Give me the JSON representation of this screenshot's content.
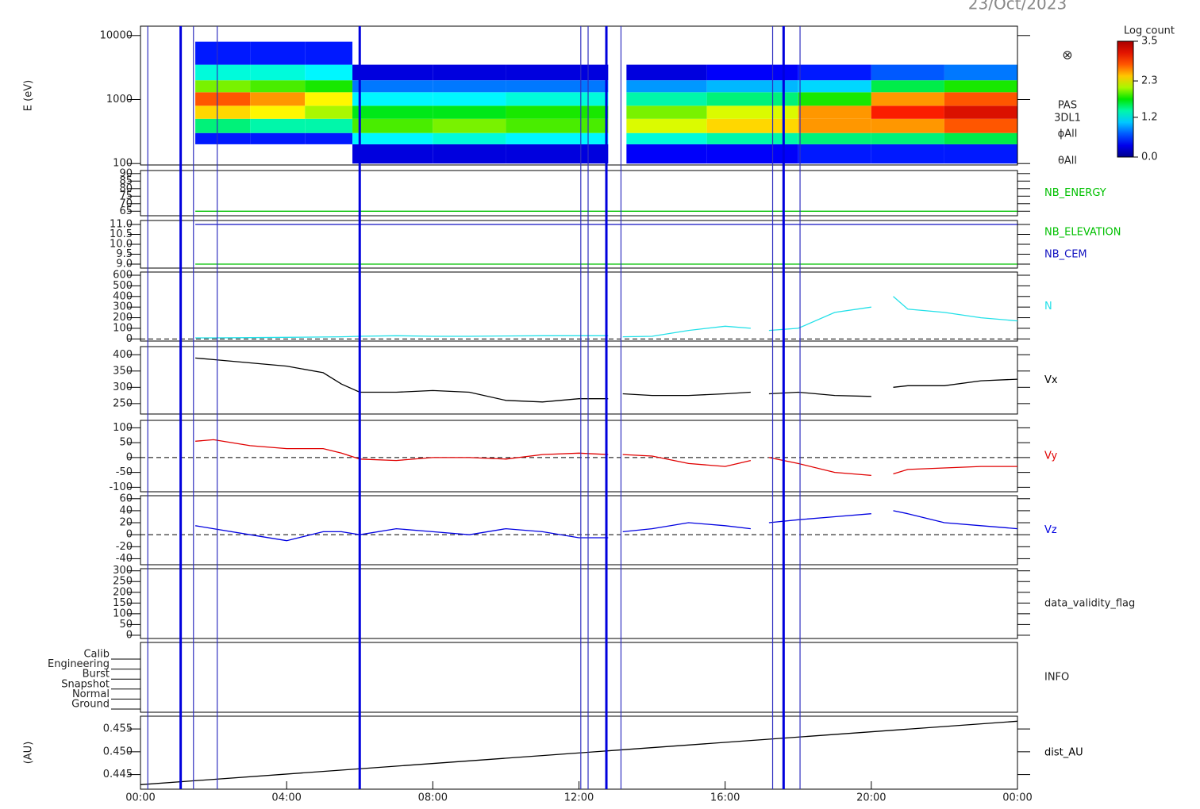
{
  "date": "23/Oct/2023",
  "time_axis": {
    "xlim": [
      0,
      24
    ],
    "xticks": [
      {
        "value": 0,
        "label": "00:00"
      },
      {
        "value": 4,
        "label": "04:00"
      },
      {
        "value": 8,
        "label": "08:00"
      },
      {
        "value": 12,
        "label": "12:00"
      },
      {
        "value": 16,
        "label": "16:00"
      },
      {
        "value": 20,
        "label": "20:00"
      },
      {
        "value": 24,
        "label": "00:00"
      }
    ]
  },
  "events": [
    0.2,
    1.1,
    1.45,
    2.1,
    6.0,
    12.05,
    12.25,
    12.75,
    13.15,
    17.3,
    17.6,
    18.05
  ],
  "chart_data": [
    {
      "type": "heatmap",
      "ylabel": "E (eV)",
      "log_scale": true,
      "ylim": [
        95,
        14000
      ],
      "yticks": [
        100,
        1000,
        10000
      ],
      "side_labels": [
        "PAS",
        "3DL1",
        "ϕAll",
        "θAll"
      ],
      "symbol": "⊗",
      "x_bins": [
        1.5,
        3,
        4.5,
        5.8,
        8,
        10,
        12.8,
        13.3,
        15.5,
        18,
        20,
        22,
        24
      ],
      "y_bins": [
        100,
        200,
        300,
        500,
        800,
        1300,
        2000,
        3500,
        8000
      ],
      "values": [
        [
          null,
          0.5,
          1.5,
          2.4,
          2.8,
          2.0,
          1.3,
          0.5
        ],
        [
          null,
          0.5,
          1.4,
          2.3,
          2.6,
          1.9,
          1.3,
          0.5
        ],
        [
          null,
          0.5,
          1.4,
          2.1,
          2.3,
          1.8,
          1.2,
          0.5
        ],
        [
          0.3,
          1.2,
          1.9,
          1.7,
          1.2,
          0.8,
          0.3,
          null
        ],
        [
          0.3,
          1.3,
          2.0,
          1.7,
          1.2,
          0.8,
          0.3,
          null
        ],
        [
          0.3,
          1.2,
          1.9,
          1.8,
          1.3,
          0.8,
          0.3,
          null
        ],
        [
          null,
          null,
          null,
          null,
          null,
          null,
          null,
          null
        ],
        [
          0.4,
          1.3,
          2.2,
          2.0,
          1.4,
          0.9,
          0.3,
          null
        ],
        [
          0.4,
          1.4,
          2.4,
          2.2,
          1.5,
          1.0,
          0.4,
          null
        ],
        [
          0.5,
          1.5,
          2.6,
          2.6,
          1.8,
          1.1,
          0.5,
          null
        ],
        [
          0.5,
          1.5,
          2.6,
          3.0,
          2.6,
          1.6,
          0.7,
          null
        ],
        [
          0.5,
          1.6,
          2.8,
          3.2,
          2.8,
          1.8,
          0.8,
          null
        ]
      ],
      "colorbar": {
        "title": "Log count",
        "lim": [
          0,
          3.5
        ],
        "ticks": [
          {
            "value": 0,
            "label": "0.0"
          },
          {
            "value": 1.2,
            "label": "1.2"
          },
          {
            "value": 2.3,
            "label": "2.3"
          },
          {
            "value": 3.5,
            "label": "3.5"
          }
        ]
      }
    },
    {
      "type": "line",
      "ylim": [
        62,
        92
      ],
      "yticks": [
        65,
        70,
        75,
        80,
        85,
        90
      ],
      "series": [
        {
          "name": "NB_ENERGY",
          "color": "#00c000",
          "x": [
            1.5,
            24
          ],
          "values": [
            65,
            65
          ]
        }
      ]
    },
    {
      "type": "line",
      "ylim": [
        8.8,
        11.2
      ],
      "yticks": [
        {
          "value": 9,
          "label": "9.0"
        },
        {
          "value": 9.5,
          "label": "9.5"
        },
        {
          "value": 10,
          "label": "10.0"
        },
        {
          "value": 10.5,
          "label": "10.5"
        },
        {
          "value": 11,
          "label": "11.0"
        }
      ],
      "series": [
        {
          "name": "NB_ELEVATION",
          "color": "#00c000",
          "x": [
            1.5,
            24
          ],
          "values": [
            9,
            9
          ]
        },
        {
          "name": "NB_CEM",
          "color": "#1010c0",
          "x": [
            1.5,
            24
          ],
          "values": [
            11,
            11
          ]
        }
      ]
    },
    {
      "type": "line",
      "ylim": [
        -20,
        630
      ],
      "yticks": [
        0,
        100,
        200,
        300,
        400,
        500,
        600
      ],
      "zero_line": true,
      "series": [
        {
          "name": "N",
          "color": "#22e0e8",
          "x": [
            1.5,
            2,
            3,
            4,
            5,
            5.5,
            6,
            7,
            8,
            9,
            10,
            11,
            12,
            12.8,
            13,
            13.2,
            14,
            15,
            16,
            16.7,
            17,
            17.2,
            18,
            19,
            20,
            20.3,
            20.6,
            21,
            22,
            23,
            24
          ],
          "values": [
            10,
            10,
            12,
            15,
            18,
            20,
            25,
            30,
            25,
            25,
            28,
            30,
            30,
            30,
            null,
            20,
            25,
            80,
            120,
            100,
            null,
            80,
            100,
            250,
            300,
            null,
            400,
            280,
            250,
            200,
            170
          ]
        }
      ]
    },
    {
      "type": "line",
      "ylim": [
        218,
        425
      ],
      "yticks": [
        250,
        300,
        350,
        400
      ],
      "series": [
        {
          "name": "Vx",
          "color": "#000000",
          "x": [
            1.5,
            2,
            3,
            4,
            5,
            5.5,
            6,
            7,
            8,
            9,
            10,
            11,
            12,
            12.8,
            13,
            13.2,
            14,
            15,
            16,
            16.7,
            17,
            17.2,
            18,
            19,
            20,
            20.3,
            20.6,
            21,
            22,
            23,
            24
          ],
          "values": [
            390,
            385,
            375,
            365,
            345,
            310,
            285,
            285,
            290,
            285,
            260,
            255,
            265,
            265,
            null,
            280,
            275,
            275,
            280,
            285,
            null,
            280,
            285,
            275,
            272,
            null,
            300,
            305,
            305,
            320,
            325
          ]
        }
      ]
    },
    {
      "type": "line",
      "ylim": [
        -115,
        125
      ],
      "yticks": [
        -100,
        -50,
        0,
        50,
        100
      ],
      "zero_line": true,
      "series": [
        {
          "name": "Vy",
          "color": "#e00000",
          "x": [
            1.5,
            2,
            3,
            4,
            5,
            5.5,
            6,
            7,
            8,
            9,
            10,
            11,
            12,
            12.8,
            13,
            13.2,
            14,
            15,
            16,
            16.7,
            17,
            17.2,
            18,
            19,
            20,
            20.3,
            20.6,
            21,
            22,
            23,
            24
          ],
          "values": [
            55,
            60,
            40,
            30,
            30,
            15,
            -5,
            -10,
            0,
            0,
            -5,
            10,
            15,
            10,
            null,
            10,
            5,
            -20,
            -30,
            -10,
            null,
            0,
            -20,
            -50,
            -60,
            null,
            -55,
            -40,
            -35,
            -30,
            -30
          ]
        }
      ]
    },
    {
      "type": "line",
      "ylim": [
        -50,
        65
      ],
      "yticks": [
        -40,
        -20,
        0,
        20,
        40,
        60
      ],
      "zero_line": true,
      "series": [
        {
          "name": "Vz",
          "color": "#0000e0",
          "x": [
            1.5,
            2,
            3,
            4,
            5,
            5.5,
            6,
            7,
            8,
            9,
            10,
            11,
            12,
            12.8,
            13,
            13.2,
            14,
            15,
            16,
            16.7,
            17,
            17.2,
            18,
            19,
            20,
            20.3,
            20.6,
            21,
            22,
            23,
            24
          ],
          "values": [
            15,
            10,
            0,
            -10,
            5,
            5,
            0,
            10,
            5,
            0,
            10,
            5,
            -5,
            -5,
            null,
            5,
            10,
            20,
            15,
            10,
            null,
            20,
            25,
            30,
            35,
            null,
            40,
            35,
            20,
            15,
            10
          ]
        }
      ]
    },
    {
      "type": "line",
      "label": "data_validity_flag",
      "ylim": [
        -15,
        310
      ],
      "yticks": [
        0,
        50,
        100,
        150,
        200,
        250,
        300
      ],
      "series": []
    },
    {
      "type": "category",
      "label": "INFO",
      "categories": [
        "Calib",
        "Engineering",
        "Burst",
        "Snapshot",
        "Normal",
        "Ground"
      ]
    },
    {
      "type": "line",
      "ylabel": "(AU)",
      "ylim": [
        0.4418,
        0.4578
      ],
      "yticks": [
        {
          "value": 0.445,
          "label": "0.445"
        },
        {
          "value": 0.45,
          "label": "0.450"
        },
        {
          "value": 0.455,
          "label": "0.455"
        }
      ],
      "series": [
        {
          "name": "dist_AU",
          "color": "#000000",
          "x": [
            0,
            24
          ],
          "values": [
            0.4428,
            0.4567
          ]
        }
      ]
    }
  ]
}
